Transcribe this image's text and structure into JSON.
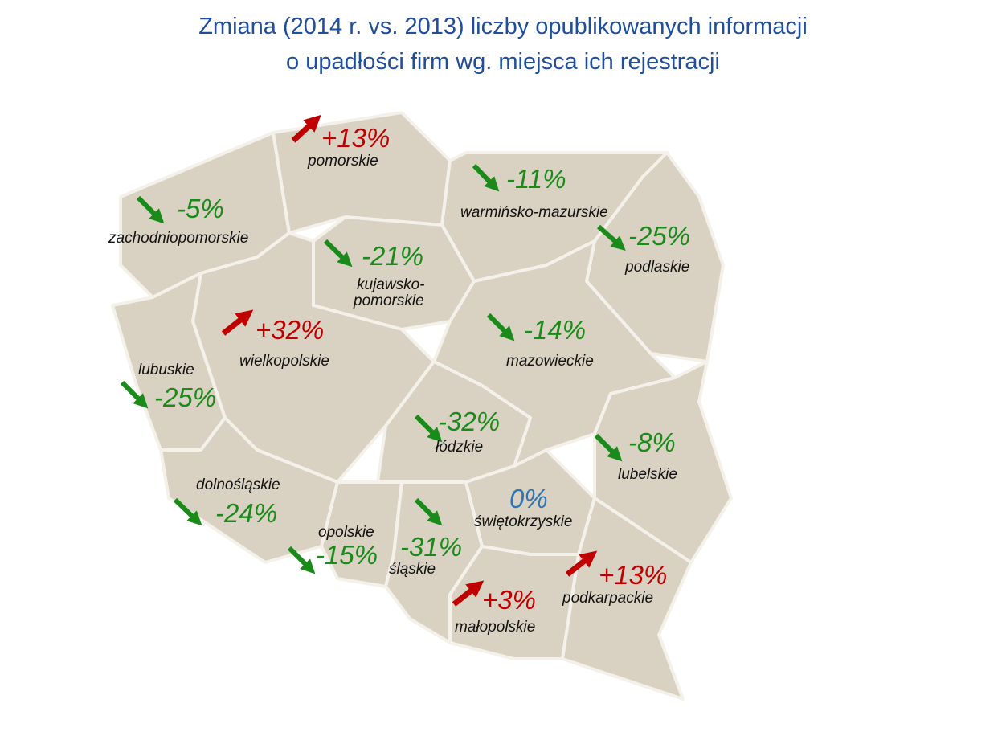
{
  "header": {
    "title_line1": "Zmiana (2014 r. vs. 2013) liczby opublikowanych informacji",
    "title_line2": "o upadłości firm wg. miejsca ich rejestracji"
  },
  "regions": [
    {
      "name": "pomorskie",
      "change": "+13%"
    },
    {
      "name": "warmińsko-mazurskie",
      "change": "-11%"
    },
    {
      "name": "zachodniopomorskie",
      "change": "-5%"
    },
    {
      "name": "podlaskie",
      "change": "-25%"
    },
    {
      "name": "kujawsko-",
      "name2": "pomorskie",
      "change": "-21%"
    },
    {
      "name": "wielkopolskie",
      "change": "+32%"
    },
    {
      "name": "mazowieckie",
      "change": "-14%"
    },
    {
      "name": "lubuskie",
      "change": "-25%"
    },
    {
      "name": "łódzkie",
      "change": "-32%"
    },
    {
      "name": "lubelskie",
      "change": "-8%"
    },
    {
      "name": "dolnośląskie",
      "change": "-24%"
    },
    {
      "name": "świętokrzyskie",
      "change": "0%"
    },
    {
      "name": "opolskie",
      "change": "-15%"
    },
    {
      "name": "śląskie",
      "change": "-31%"
    },
    {
      "name": "podkarpackie",
      "change": "+13%"
    },
    {
      "name": "małopolskie",
      "change": "+3%"
    }
  ]
}
